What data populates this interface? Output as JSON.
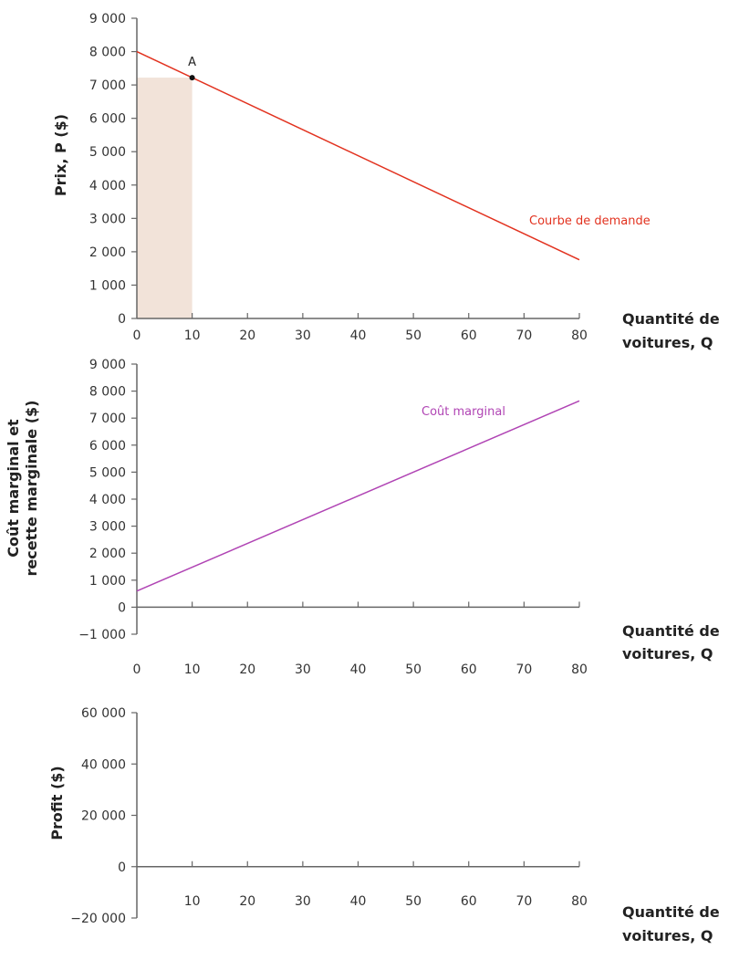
{
  "chart_data": [
    {
      "type": "line",
      "ylabel": "Prix, P ($)",
      "xlabel": "Quantité de voitures, Q",
      "xlabel_lines": [
        "Quantité de",
        "voitures, Q"
      ],
      "xlim": [
        0,
        80
      ],
      "ylim": [
        0,
        9000
      ],
      "xticks": [
        0,
        10,
        20,
        30,
        40,
        50,
        60,
        70,
        80
      ],
      "xtick_labels": [
        "0",
        "10",
        "20",
        "30",
        "40",
        "50",
        "60",
        "70",
        "80"
      ],
      "yticks": [
        0,
        1000,
        2000,
        3000,
        4000,
        5000,
        6000,
        7000,
        8000,
        9000
      ],
      "ytick_labels": [
        "0",
        "1 000",
        "2 000",
        "3 000",
        "4 000",
        "5 000",
        "6 000",
        "7 000",
        "8 000",
        "9 000"
      ],
      "grid": false,
      "series": [
        {
          "name": "Courbe de demande",
          "color": "#e2321f",
          "x": [
            0,
            80
          ],
          "y": [
            8000,
            1760
          ]
        }
      ],
      "points": [
        {
          "label": "A",
          "x": 10,
          "y": 7220
        }
      ],
      "shaded_rect": {
        "x": [
          0,
          10
        ],
        "y": [
          0,
          7220
        ],
        "color": "#f2e3d9"
      }
    },
    {
      "type": "line",
      "ylabel": "Coût marginal et recette marginale ($)",
      "ylabel_lines": [
        "Coût marginal et",
        "recette marginale ($)"
      ],
      "xlabel": "Quantité de voitures, Q",
      "xlabel_lines": [
        "Quantité de",
        "voitures, Q"
      ],
      "xlim": [
        0,
        80
      ],
      "ylim": [
        -1000,
        9000
      ],
      "xticks": [
        0,
        10,
        20,
        30,
        40,
        50,
        60,
        70,
        80
      ],
      "xtick_labels": [
        "0",
        "10",
        "20",
        "30",
        "40",
        "50",
        "60",
        "70",
        "80"
      ],
      "yticks": [
        -1000,
        0,
        1000,
        2000,
        3000,
        4000,
        5000,
        6000,
        7000,
        8000,
        9000
      ],
      "ytick_labels": [
        "−1 000",
        "0",
        "1 000",
        "2 000",
        "3 000",
        "4 000",
        "5 000",
        "6 000",
        "7 000",
        "8 000",
        "9 000"
      ],
      "grid": false,
      "series": [
        {
          "name": "Coût marginal",
          "color": "#b044b4",
          "x": [
            0,
            80
          ],
          "y": [
            600,
            7640
          ]
        }
      ]
    },
    {
      "type": "line",
      "ylabel": "Profit ($)",
      "xlabel": "Quantité de voitures, Q",
      "xlabel_lines": [
        "Quantité de",
        "voitures, Q"
      ],
      "xlim": [
        0,
        80
      ],
      "ylim": [
        -20000,
        60000
      ],
      "xticks": [
        10,
        20,
        30,
        40,
        50,
        60,
        70,
        80
      ],
      "xtick_labels": [
        "10",
        "20",
        "30",
        "40",
        "50",
        "60",
        "70",
        "80"
      ],
      "yticks": [
        -20000,
        0,
        20000,
        40000,
        60000
      ],
      "ytick_labels": [
        "−20 000",
        "0",
        "20 000",
        "40 000",
        "60 000"
      ],
      "grid": false,
      "series": []
    }
  ]
}
